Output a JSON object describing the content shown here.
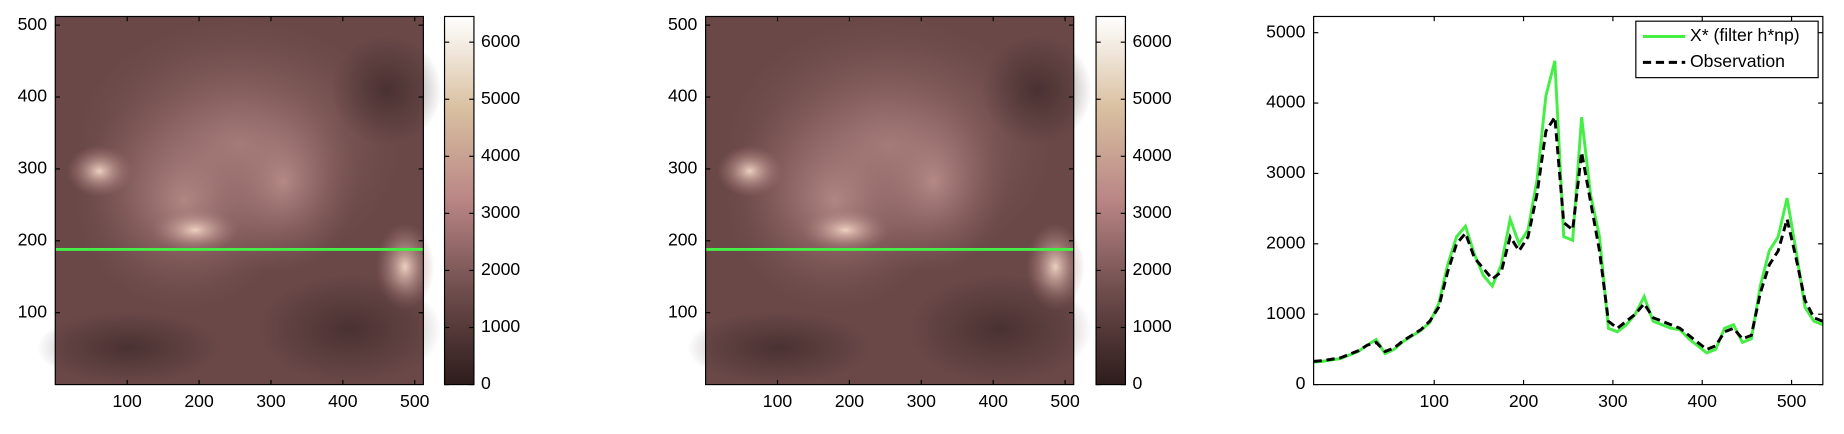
{
  "chart_data": [
    {
      "type": "heatmap",
      "xlim": [
        0,
        512
      ],
      "ylim": [
        0,
        512
      ],
      "xticks": [
        100,
        200,
        300,
        400,
        500
      ],
      "yticks": [
        100,
        200,
        300,
        400,
        500
      ],
      "hline": 188,
      "hline_color": "#44ee44",
      "colorbar_lim": [
        0,
        6450
      ],
      "colorbar_ticks": [
        0,
        1000,
        2000,
        3000,
        4000,
        5000,
        6000
      ],
      "colormap": [
        "#2e1c1c",
        "#6e4c4c",
        "#b98585",
        "#d9c0a0",
        "#ffffff"
      ]
    },
    {
      "type": "heatmap",
      "xlim": [
        0,
        512
      ],
      "ylim": [
        0,
        512
      ],
      "xticks": [
        100,
        200,
        300,
        400,
        500
      ],
      "yticks": [
        100,
        200,
        300,
        400,
        500
      ],
      "hline": 188,
      "hline_color": "#44ee44",
      "colorbar_lim": [
        0,
        6450
      ],
      "colorbar_ticks": [
        0,
        1000,
        2000,
        3000,
        4000,
        5000,
        6000
      ],
      "colormap": [
        "#2e1c1c",
        "#6e4c4c",
        "#b98585",
        "#d9c0a0",
        "#ffffff"
      ]
    },
    {
      "type": "line",
      "xlim": [
        -35,
        535
      ],
      "ylim": [
        0,
        5230
      ],
      "xticks": [
        100,
        200,
        300,
        400,
        500
      ],
      "yticks": [
        0,
        1000,
        2000,
        3000,
        4000,
        5000
      ],
      "legend": "upper right",
      "x": [
        -35,
        -25,
        -15,
        -5,
        5,
        15,
        25,
        35,
        45,
        55,
        65,
        75,
        85,
        95,
        105,
        115,
        125,
        135,
        145,
        155,
        165,
        175,
        185,
        195,
        205,
        215,
        225,
        235,
        245,
        255,
        265,
        275,
        285,
        295,
        305,
        315,
        325,
        335,
        345,
        355,
        365,
        375,
        385,
        395,
        405,
        415,
        425,
        435,
        445,
        455,
        465,
        475,
        485,
        495,
        505,
        515,
        525,
        535
      ],
      "series": [
        {
          "name": "X* (filter h*np)",
          "color": "#44ee44",
          "dash": false,
          "values": [
            320,
            330,
            350,
            370,
            420,
            470,
            560,
            640,
            440,
            500,
            610,
            690,
            770,
            880,
            1150,
            1700,
            2100,
            2250,
            1850,
            1550,
            1400,
            1700,
            2350,
            2000,
            2200,
            2900,
            4100,
            4600,
            2100,
            2050,
            3800,
            2700,
            2100,
            800,
            750,
            850,
            1000,
            1250,
            900,
            850,
            800,
            780,
            650,
            550,
            450,
            500,
            800,
            850,
            600,
            650,
            1400,
            1900,
            2100,
            2650,
            1900,
            1100,
            900,
            850
          ]
        },
        {
          "name": "Observation",
          "color": "#000000",
          "dash": true,
          "values": [
            330,
            340,
            360,
            380,
            430,
            480,
            560,
            600,
            470,
            520,
            620,
            700,
            780,
            900,
            1100,
            1600,
            2000,
            2150,
            1800,
            1650,
            1500,
            1600,
            2100,
            1900,
            2100,
            2700,
            3600,
            3800,
            2300,
            2200,
            3300,
            2600,
            1900,
            900,
            800,
            900,
            1000,
            1150,
            950,
            900,
            850,
            800,
            700,
            600,
            500,
            550,
            750,
            800,
            650,
            700,
            1300,
            1700,
            1900,
            2350,
            1800,
            1200,
            950,
            900
          ]
        }
      ]
    }
  ]
}
